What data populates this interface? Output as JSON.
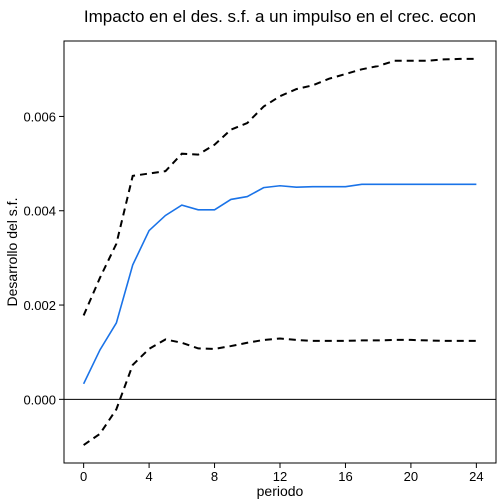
{
  "chart_data": {
    "type": "line",
    "title": "Impacto en el des. s.f. a un impulso en el crec. econ",
    "xlabel": "periodo",
    "ylabel": "Desarrollo del s.f.",
    "xlim": [
      -1.2,
      25.2
    ],
    "ylim": [
      -0.00135,
      0.0076
    ],
    "x_ticks": [
      0,
      4,
      8,
      12,
      16,
      20,
      24
    ],
    "x_tick_labels": [
      "0",
      "4",
      "8",
      "12",
      "16",
      "20",
      "24"
    ],
    "y_ticks": [
      0.0,
      0.002,
      0.004,
      0.006
    ],
    "y_tick_labels": [
      "0.000",
      "0.002",
      "0.004",
      "0.006"
    ],
    "reference_line_y": 0,
    "grid": false,
    "x": [
      0,
      1,
      2,
      3,
      4,
      5,
      6,
      7,
      8,
      9,
      10,
      11,
      12,
      13,
      14,
      15,
      16,
      17,
      18,
      19,
      20,
      21,
      22,
      23,
      24
    ],
    "series": [
      {
        "role": "response",
        "color": "#1a73e8",
        "dash": "solid",
        "values": [
          0.00033,
          0.00105,
          0.00162,
          0.00285,
          0.00358,
          0.0039,
          0.00412,
          0.00402,
          0.00402,
          0.00424,
          0.0043,
          0.00449,
          0.00453,
          0.0045,
          0.00451,
          0.00451,
          0.00451,
          0.00456,
          0.00456,
          0.00456,
          0.00456,
          0.00456,
          0.00456,
          0.00456,
          0.00456
        ]
      },
      {
        "role": "upper-bound",
        "color": "#000000",
        "dash": "dashed",
        "values": [
          0.00178,
          0.00258,
          0.0033,
          0.00474,
          0.00479,
          0.00484,
          0.00521,
          0.00519,
          0.0054,
          0.00572,
          0.00586,
          0.00621,
          0.00643,
          0.00658,
          0.00666,
          0.0068,
          0.0069,
          0.007,
          0.00707,
          0.00718,
          0.00718,
          0.00718,
          0.00721,
          0.00722,
          0.00722
        ]
      },
      {
        "role": "lower-bound",
        "color": "#000000",
        "dash": "dashed",
        "values": [
          -0.00097,
          -0.00073,
          -0.00021,
          0.00073,
          0.00107,
          0.00127,
          0.0012,
          0.00108,
          0.00107,
          0.00113,
          0.0012,
          0.00126,
          0.00129,
          0.00126,
          0.00124,
          0.00124,
          0.00124,
          0.00125,
          0.00125,
          0.00126,
          0.00126,
          0.00125,
          0.00124,
          0.00124,
          0.00124
        ]
      }
    ]
  }
}
